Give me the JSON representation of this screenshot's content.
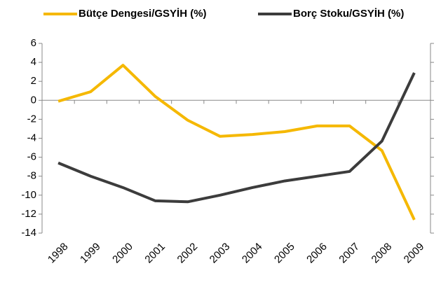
{
  "chart_data": {
    "type": "line",
    "categories": [
      "1998",
      "1999",
      "2000",
      "2001",
      "2002",
      "2003",
      "2004",
      "2005",
      "2006",
      "2007",
      "2008",
      "2009"
    ],
    "series": [
      {
        "name": "Bütçe Dengesi/GSYİH (%)",
        "color": "#f5b800",
        "values": [
          -0.1,
          0.9,
          3.7,
          0.4,
          -2.1,
          -3.8,
          -3.6,
          -3.3,
          -2.7,
          -2.7,
          -5.3,
          -12.6
        ]
      },
      {
        "name": "Borç Stoku/GSYİH (%)",
        "color": "#3c3c3c",
        "values": [
          -6.6,
          -8.0,
          -9.2,
          -10.6,
          -10.7,
          -10.0,
          -9.2,
          -8.5,
          -8.0,
          -7.5,
          -4.3,
          2.9
        ]
      }
    ],
    "ylim": [
      -14,
      6
    ],
    "yticks": [
      6,
      4,
      2,
      0,
      -2,
      -4,
      -6,
      -8,
      -10,
      -12,
      -14
    ],
    "legend": "top"
  }
}
